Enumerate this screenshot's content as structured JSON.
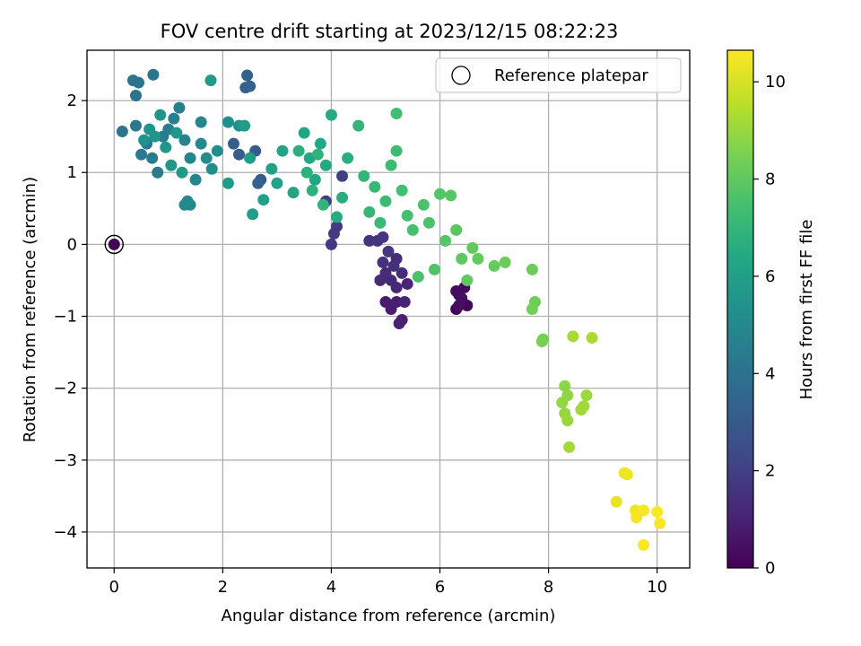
{
  "chart_data": {
    "type": "scatter",
    "title": "FOV centre drift starting at 2023/12/15 08:22:23",
    "xlabel": "Angular distance from reference (arcmin)",
    "ylabel": "Rotation from reference (arcmin)",
    "xlim": [
      -0.5,
      10.6
    ],
    "ylim": [
      -4.5,
      2.7
    ],
    "xticks": [
      0,
      2,
      4,
      6,
      8,
      10
    ],
    "yticks": [
      2,
      1,
      0,
      -1,
      -2,
      -3,
      -4
    ],
    "grid": true,
    "legend": {
      "placement": "top-right",
      "label": "Reference platepar"
    },
    "reference_point": {
      "x": 0,
      "y": 0
    },
    "colorbar": {
      "label": "Hours from first FF file",
      "colormap": "viridis",
      "range": [
        0,
        10.65
      ],
      "ticks": [
        0,
        2,
        4,
        6,
        8,
        10
      ]
    },
    "points": [
      [
        0.0,
        0.0,
        0.0
      ],
      [
        6.3,
        -0.9,
        0.05
      ],
      [
        6.4,
        -0.8,
        0.1
      ],
      [
        6.5,
        -0.85,
        0.15
      ],
      [
        6.35,
        -0.7,
        0.2
      ],
      [
        6.45,
        -0.6,
        0.25
      ],
      [
        6.3,
        -0.65,
        0.3
      ],
      [
        6.4,
        -0.75,
        0.35
      ],
      [
        6.35,
        -0.85,
        0.4
      ],
      [
        5.0,
        -0.8,
        0.8
      ],
      [
        5.1,
        -0.9,
        0.85
      ],
      [
        5.2,
        -0.8,
        0.9
      ],
      [
        5.3,
        -1.05,
        0.95
      ],
      [
        5.25,
        -1.1,
        1.0
      ],
      [
        5.35,
        -0.8,
        1.05
      ],
      [
        5.4,
        -0.55,
        1.1
      ],
      [
        5.2,
        -0.6,
        1.15
      ],
      [
        5.1,
        -0.5,
        1.2
      ],
      [
        4.9,
        -0.5,
        1.25
      ],
      [
        5.0,
        -0.4,
        1.3
      ],
      [
        5.2,
        -0.2,
        1.35
      ],
      [
        5.3,
        -0.4,
        1.4
      ],
      [
        5.15,
        -0.3,
        1.45
      ],
      [
        4.95,
        -0.25,
        1.5
      ],
      [
        4.7,
        0.05,
        1.55
      ],
      [
        4.85,
        0.05,
        1.6
      ],
      [
        4.95,
        0.1,
        1.65
      ],
      [
        5.05,
        -0.1,
        1.7
      ],
      [
        4.0,
        0.0,
        1.75
      ],
      [
        4.05,
        0.15,
        1.8
      ],
      [
        4.1,
        0.25,
        1.85
      ],
      [
        3.9,
        0.6,
        1.9
      ],
      [
        4.2,
        0.95,
        2.0
      ],
      [
        2.7,
        0.9,
        3.0
      ],
      [
        2.6,
        1.3,
        3.05
      ],
      [
        2.3,
        1.25,
        3.1
      ],
      [
        2.2,
        1.4,
        3.15
      ],
      [
        2.5,
        2.2,
        3.2
      ],
      [
        2.45,
        2.35,
        3.25
      ],
      [
        2.42,
        2.18,
        3.3
      ],
      [
        2.65,
        0.85,
        3.35
      ],
      [
        0.35,
        2.28,
        4.0
      ],
      [
        0.45,
        2.25,
        4.05
      ],
      [
        0.4,
        2.07,
        4.1
      ],
      [
        0.72,
        2.36,
        4.15
      ],
      [
        0.15,
        1.57,
        4.2
      ],
      [
        0.4,
        1.65,
        4.25
      ],
      [
        0.5,
        1.25,
        4.3
      ],
      [
        0.6,
        1.4,
        4.35
      ],
      [
        0.7,
        1.2,
        4.4
      ],
      [
        0.8,
        1.0,
        4.45
      ],
      [
        0.9,
        1.5,
        4.5
      ],
      [
        1.0,
        1.6,
        4.55
      ],
      [
        1.1,
        1.75,
        4.6
      ],
      [
        1.2,
        1.9,
        4.65
      ],
      [
        1.3,
        1.45,
        4.7
      ],
      [
        1.4,
        1.2,
        4.75
      ],
      [
        1.5,
        0.9,
        4.8
      ],
      [
        1.6,
        1.7,
        4.85
      ],
      [
        1.3,
        0.55,
        4.9
      ],
      [
        1.35,
        0.6,
        4.95
      ],
      [
        1.4,
        0.55,
        5.0
      ],
      [
        1.6,
        1.4,
        5.05
      ],
      [
        1.7,
        1.2,
        5.1
      ],
      [
        1.8,
        1.05,
        5.15
      ],
      [
        1.9,
        1.3,
        5.2
      ],
      [
        2.1,
        1.7,
        5.25
      ],
      [
        2.3,
        1.65,
        5.3
      ],
      [
        0.55,
        1.45,
        5.35
      ],
      [
        0.65,
        1.6,
        5.4
      ],
      [
        0.75,
        1.5,
        5.45
      ],
      [
        0.85,
        1.8,
        5.5
      ],
      [
        0.95,
        1.35,
        5.55
      ],
      [
        1.05,
        1.1,
        5.6
      ],
      [
        1.15,
        1.55,
        5.65
      ],
      [
        1.25,
        1.0,
        5.7
      ],
      [
        1.78,
        2.28,
        5.75
      ],
      [
        2.1,
        0.85,
        5.8
      ],
      [
        2.4,
        1.65,
        5.85
      ],
      [
        2.5,
        1.2,
        5.9
      ],
      [
        2.55,
        0.42,
        5.95
      ],
      [
        2.75,
        0.62,
        6.0
      ],
      [
        2.9,
        1.05,
        6.05
      ],
      [
        3.0,
        0.85,
        6.1
      ],
      [
        3.1,
        1.3,
        6.15
      ],
      [
        3.3,
        0.72,
        6.2
      ],
      [
        3.5,
        1.55,
        6.25
      ],
      [
        3.6,
        1.2,
        6.3
      ],
      [
        3.7,
        0.9,
        6.35
      ],
      [
        3.8,
        1.4,
        6.4
      ],
      [
        3.9,
        1.1,
        6.45
      ],
      [
        4.0,
        1.8,
        6.5
      ],
      [
        4.1,
        0.38,
        6.55
      ],
      [
        4.2,
        0.65,
        6.6
      ],
      [
        4.3,
        1.2,
        6.65
      ],
      [
        3.4,
        1.3,
        6.7
      ],
      [
        3.55,
        1.0,
        6.75
      ],
      [
        3.65,
        0.75,
        6.8
      ],
      [
        3.75,
        1.25,
        6.85
      ],
      [
        3.85,
        0.55,
        6.9
      ],
      [
        4.5,
        1.65,
        6.95
      ],
      [
        4.6,
        0.95,
        7.0
      ],
      [
        4.7,
        0.45,
        7.05
      ],
      [
        4.8,
        0.8,
        7.1
      ],
      [
        4.9,
        0.3,
        7.15
      ],
      [
        5.0,
        0.6,
        7.2
      ],
      [
        5.1,
        1.1,
        7.25
      ],
      [
        5.2,
        1.3,
        7.3
      ],
      [
        5.2,
        1.82,
        7.35
      ],
      [
        5.3,
        0.75,
        7.4
      ],
      [
        5.4,
        0.4,
        7.45
      ],
      [
        5.5,
        0.2,
        7.5
      ],
      [
        5.6,
        -0.45,
        7.55
      ],
      [
        5.7,
        0.55,
        7.6
      ],
      [
        5.8,
        0.3,
        7.65
      ],
      [
        5.9,
        -0.35,
        7.7
      ],
      [
        6.0,
        0.7,
        7.75
      ],
      [
        6.1,
        0.05,
        7.8
      ],
      [
        6.2,
        0.68,
        7.85
      ],
      [
        6.3,
        0.2,
        7.9
      ],
      [
        6.4,
        -0.2,
        7.95
      ],
      [
        6.5,
        -0.5,
        8.0
      ],
      [
        6.6,
        -0.05,
        8.05
      ],
      [
        6.7,
        -0.2,
        8.1
      ],
      [
        7.0,
        -0.3,
        8.15
      ],
      [
        7.2,
        -0.25,
        8.2
      ],
      [
        7.7,
        -0.35,
        8.25
      ],
      [
        7.75,
        -0.8,
        8.3
      ],
      [
        7.7,
        -0.9,
        8.35
      ],
      [
        7.9,
        -1.32,
        8.4
      ],
      [
        7.88,
        -1.35,
        8.45
      ],
      [
        8.3,
        -1.97,
        8.8
      ],
      [
        8.35,
        -2.1,
        8.85
      ],
      [
        8.25,
        -2.2,
        8.9
      ],
      [
        8.3,
        -2.35,
        8.95
      ],
      [
        8.35,
        -2.45,
        9.0
      ],
      [
        8.7,
        -2.1,
        9.05
      ],
      [
        8.65,
        -2.25,
        9.1
      ],
      [
        8.6,
        -2.3,
        9.15
      ],
      [
        8.38,
        -2.82,
        9.2
      ],
      [
        8.45,
        -1.28,
        9.25
      ],
      [
        8.8,
        -1.3,
        9.3
      ],
      [
        9.25,
        -3.58,
        10.3
      ],
      [
        9.4,
        -3.18,
        10.35
      ],
      [
        9.45,
        -3.2,
        10.4
      ],
      [
        9.6,
        -3.7,
        10.45
      ],
      [
        9.62,
        -3.8,
        10.5
      ],
      [
        9.75,
        -3.7,
        10.55
      ],
      [
        10.0,
        -3.72,
        10.6
      ],
      [
        10.05,
        -3.88,
        10.62
      ],
      [
        9.75,
        -4.18,
        10.65
      ]
    ]
  }
}
